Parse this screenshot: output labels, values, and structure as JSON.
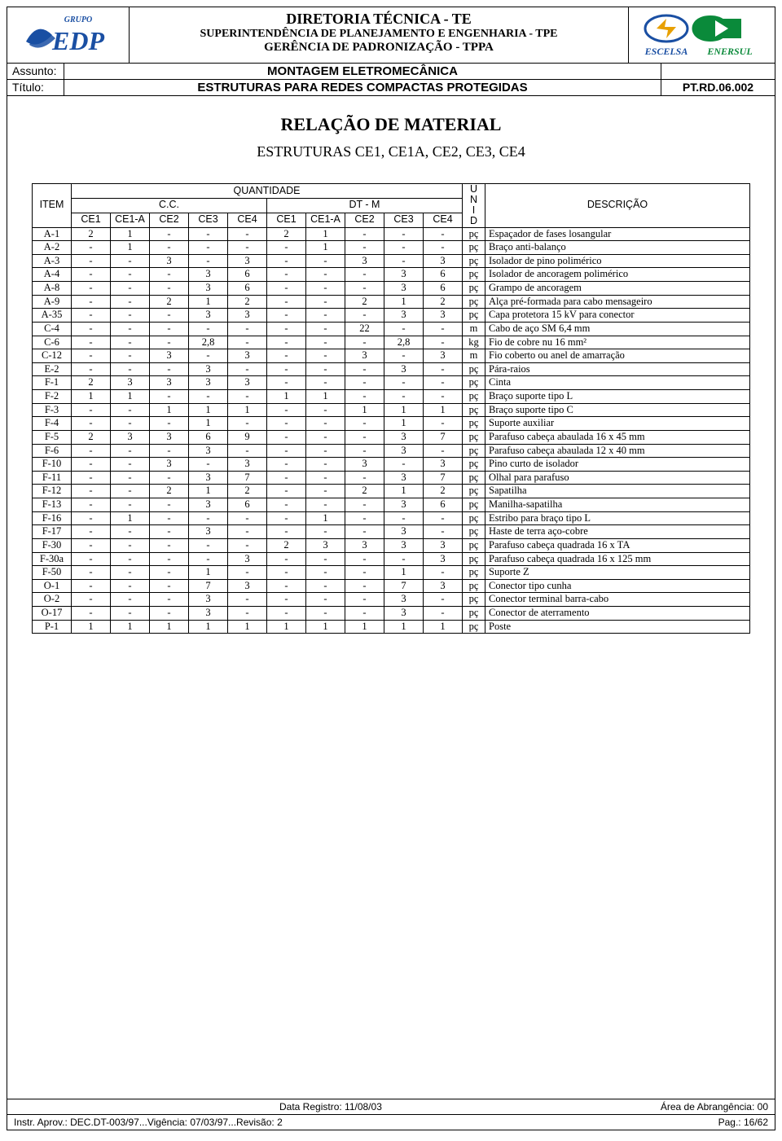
{
  "header": {
    "line1": "DIRETORIA TÉCNICA - TE",
    "line2": "SUPERINTENDÊNCIA DE PLANEJAMENTO E ENGENHARIA - TPE",
    "line3": "GERÊNCIA DE PADRONIZAÇÃO - TPPA",
    "assunto_label": "Assunto:",
    "assunto_value": "MONTAGEM ELETROMECÂNICA",
    "titulo_label": "Título:",
    "titulo_value": "ESTRUTURAS PARA REDES COMPACTAS PROTEGIDAS",
    "doc_code": "PT.RD.06.002",
    "logo_left_group": "GRUPO",
    "logo_left_brand": "EDP",
    "logo_right_escelsa": "ESCELSA",
    "logo_right_enersul": "ENERSUL"
  },
  "titles": {
    "main": "RELAÇÃO DE MATERIAL",
    "sub": "ESTRUTURAS CE1, CE1A, CE2, CE3, CE4"
  },
  "table": {
    "item_header": "ITEM",
    "qty_header": "QUANTIDADE",
    "cc_header": "C.C.",
    "dtm_header": "DT - M",
    "unid_header": "U\nN\nI\nD",
    "desc_header": "DESCRIÇÃO",
    "cols": [
      "CE1",
      "CE1-A",
      "CE2",
      "CE3",
      "CE4",
      "CE1",
      "CE1-A",
      "CE2",
      "CE3",
      "CE4"
    ],
    "rows": [
      {
        "item": "A-1",
        "q": [
          "2",
          "1",
          "-",
          "-",
          "-",
          "2",
          "1",
          "-",
          "-",
          "-"
        ],
        "u": "pç",
        "d": "Espaçador de fases losangular"
      },
      {
        "item": "A-2",
        "q": [
          "-",
          "1",
          "-",
          "-",
          "-",
          "-",
          "1",
          "-",
          "-",
          "-"
        ],
        "u": "pç",
        "d": "Braço anti-balanço"
      },
      {
        "item": "A-3",
        "q": [
          "-",
          "-",
          "3",
          "-",
          "3",
          "-",
          "-",
          "3",
          "-",
          "3"
        ],
        "u": "pç",
        "d": "Isolador de pino polimérico"
      },
      {
        "item": "A-4",
        "q": [
          "-",
          "-",
          "-",
          "3",
          "6",
          "-",
          "-",
          "-",
          "3",
          "6"
        ],
        "u": "pç",
        "d": "Isolador de ancoragem polimérico"
      },
      {
        "item": "A-8",
        "q": [
          "-",
          "-",
          "-",
          "3",
          "6",
          "-",
          "-",
          "-",
          "3",
          "6"
        ],
        "u": "pç",
        "d": "Grampo de ancoragem"
      },
      {
        "item": "A-9",
        "q": [
          "-",
          "-",
          "2",
          "1",
          "2",
          "-",
          "-",
          "2",
          "1",
          "2"
        ],
        "u": "pç",
        "d": "Alça pré-formada para cabo mensageiro"
      },
      {
        "item": "A-35",
        "q": [
          "-",
          "-",
          "-",
          "3",
          "3",
          "-",
          "-",
          "-",
          "3",
          "3"
        ],
        "u": "pç",
        "d": "Capa protetora 15 kV para conector"
      },
      {
        "item": "C-4",
        "q": [
          "-",
          "-",
          "-",
          "-",
          "-",
          "-",
          "-",
          "22",
          "-",
          "-"
        ],
        "u": "m",
        "d": "Cabo de aço SM 6,4 mm"
      },
      {
        "item": "C-6",
        "q": [
          "-",
          "-",
          "-",
          "2,8",
          "-",
          "-",
          "-",
          "-",
          "2,8",
          "-"
        ],
        "u": "kg",
        "d": "Fio de cobre nu 16 mm²"
      },
      {
        "item": "C-12",
        "q": [
          "-",
          "-",
          "3",
          "-",
          "3",
          "-",
          "-",
          "3",
          "-",
          "3"
        ],
        "u": "m",
        "d": "Fio coberto ou anel de amarração"
      },
      {
        "item": "E-2",
        "q": [
          "-",
          "-",
          "-",
          "3",
          "-",
          "-",
          "-",
          "-",
          "3",
          "-"
        ],
        "u": "pç",
        "d": "Pára-raios"
      },
      {
        "item": "F-1",
        "q": [
          "2",
          "3",
          "3",
          "3",
          "3",
          "-",
          "-",
          "-",
          "-",
          "-"
        ],
        "u": "pç",
        "d": "Cinta"
      },
      {
        "item": "F-2",
        "q": [
          "1",
          "1",
          "-",
          "-",
          "-",
          "1",
          "1",
          "-",
          "-",
          "-"
        ],
        "u": "pç",
        "d": "Braço suporte tipo L"
      },
      {
        "item": "F-3",
        "q": [
          "-",
          "-",
          "1",
          "1",
          "1",
          "-",
          "-",
          "1",
          "1",
          "1"
        ],
        "u": "pç",
        "d": "Braço suporte tipo C"
      },
      {
        "item": "F-4",
        "q": [
          "-",
          "-",
          "-",
          "1",
          "-",
          "-",
          "-",
          "-",
          "1",
          "-"
        ],
        "u": "pç",
        "d": "Suporte auxiliar"
      },
      {
        "item": "F-5",
        "q": [
          "2",
          "3",
          "3",
          "6",
          "9",
          "-",
          "-",
          "-",
          "3",
          "7"
        ],
        "u": "pç",
        "d": "Parafuso cabeça abaulada 16 x 45 mm"
      },
      {
        "item": "F-6",
        "q": [
          "-",
          "-",
          "-",
          "3",
          "-",
          "-",
          "-",
          "-",
          "3",
          "-"
        ],
        "u": "pç",
        "d": "Parafuso cabeça abaulada 12 x 40 mm"
      },
      {
        "item": "F-10",
        "q": [
          "-",
          "-",
          "3",
          "-",
          "3",
          "-",
          "-",
          "3",
          "-",
          "3"
        ],
        "u": "pç",
        "d": "Pino curto de isolador"
      },
      {
        "item": "F-11",
        "q": [
          "-",
          "-",
          "-",
          "3",
          "7",
          "-",
          "-",
          "-",
          "3",
          "7"
        ],
        "u": "pç",
        "d": "Olhal para parafuso"
      },
      {
        "item": "F-12",
        "q": [
          "-",
          "-",
          "2",
          "1",
          "2",
          "-",
          "-",
          "2",
          "1",
          "2"
        ],
        "u": "pç",
        "d": "Sapatilha"
      },
      {
        "item": "F-13",
        "q": [
          "-",
          "-",
          "-",
          "3",
          "6",
          "-",
          "-",
          "-",
          "3",
          "6"
        ],
        "u": "pç",
        "d": "Manilha-sapatilha"
      },
      {
        "item": "F-16",
        "q": [
          "-",
          "1",
          "-",
          "-",
          "-",
          "-",
          "1",
          "-",
          "-",
          "-"
        ],
        "u": "pç",
        "d": "Estribo para braço tipo L"
      },
      {
        "item": "F-17",
        "q": [
          "-",
          "-",
          "-",
          "3",
          "-",
          "-",
          "-",
          "-",
          "3",
          "-"
        ],
        "u": "pç",
        "d": "Haste de terra aço-cobre"
      },
      {
        "item": "F-30",
        "q": [
          "-",
          "-",
          "-",
          "-",
          "-",
          "2",
          "3",
          "3",
          "3",
          "3"
        ],
        "u": "pç",
        "d": "Parafuso cabeça quadrada 16 x TA"
      },
      {
        "item": "F-30a",
        "q": [
          "-",
          "-",
          "-",
          "-",
          "3",
          "-",
          "-",
          "-",
          "-",
          "3"
        ],
        "u": "pç",
        "d": "Parafuso cabeça quadrada 16 x 125 mm"
      },
      {
        "item": "F-50",
        "q": [
          "-",
          "-",
          "-",
          "1",
          "-",
          "-",
          "-",
          "-",
          "1",
          "-"
        ],
        "u": "pç",
        "d": "Suporte Z"
      },
      {
        "item": "O-1",
        "q": [
          "-",
          "-",
          "-",
          "7",
          "3",
          "-",
          "-",
          "-",
          "7",
          "3"
        ],
        "u": "pç",
        "d": "Conector tipo cunha"
      },
      {
        "item": "O-2",
        "q": [
          "-",
          "-",
          "-",
          "3",
          "-",
          "-",
          "-",
          "-",
          "3",
          "-"
        ],
        "u": "pç",
        "d": "Conector terminal barra-cabo"
      },
      {
        "item": "O-17",
        "q": [
          "-",
          "-",
          "-",
          "3",
          "-",
          "-",
          "-",
          "-",
          "3",
          "-"
        ],
        "u": "pç",
        "d": "Conector de aterramento"
      },
      {
        "item": "P-1",
        "q": [
          "1",
          "1",
          "1",
          "1",
          "1",
          "1",
          "1",
          "1",
          "1",
          "1"
        ],
        "u": "pç",
        "d": "Poste"
      }
    ]
  },
  "footer": {
    "data_registro_label": "Data Registro:",
    "data_registro": "11/08/03",
    "area_label": "Área de Abrangência:",
    "area": "00",
    "instr": "Instr. Aprov.: DEC.DT-003/97...Vigência: 07/03/97...Revisão: 2",
    "pag_label": "Pag.:",
    "pag": "16/62"
  }
}
